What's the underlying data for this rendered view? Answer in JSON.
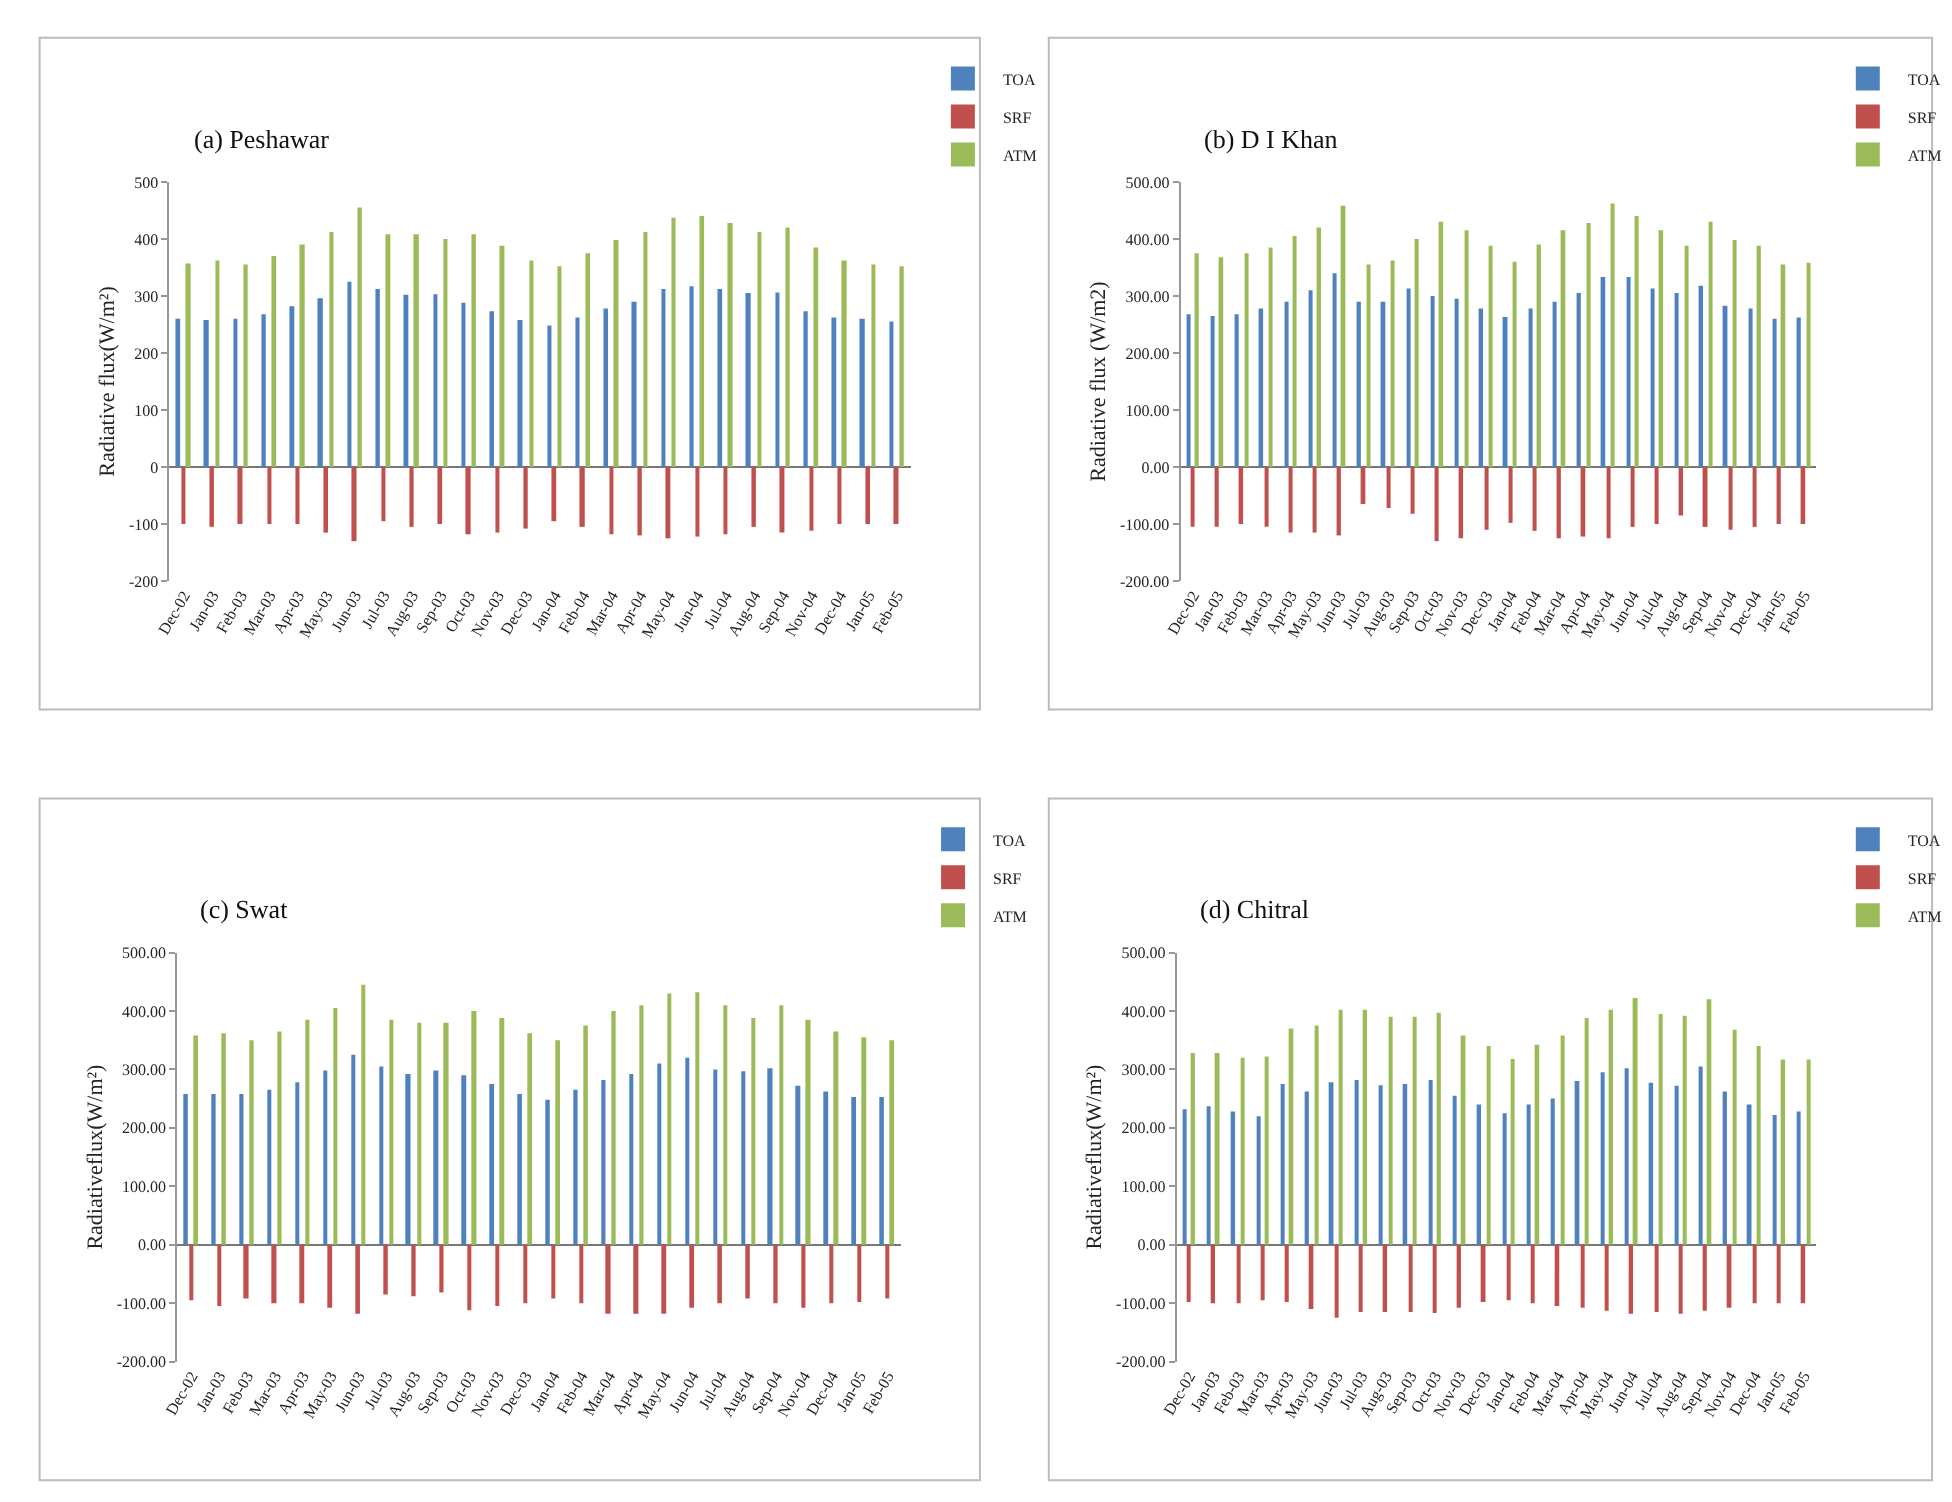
{
  "chart_data": [
    {
      "type": "bar",
      "title": "(a) Peshawar",
      "ylabel": "Radiative flux(W/m²)",
      "legend": "top right",
      "categories": [
        "Dec-02",
        "Jan-03",
        "Feb-03",
        "Mar-03",
        "Apr-03",
        "May-03",
        "Jun-03",
        "Jul-03",
        "Aug-03",
        "Sep-03",
        "Oct-03",
        "Nov-03",
        "Dec-03",
        "Jan-04",
        "Feb-04",
        "Mar-04",
        "Apr-04",
        "May-04",
        "Jun-04",
        "Jul-04",
        "Aug-04",
        "Sep-04",
        "Nov-04",
        "Dec-04",
        "Jan-05",
        "Feb-05"
      ],
      "ylim": [
        -200,
        500
      ],
      "yticks": [
        -200,
        -100,
        0,
        100,
        200,
        300,
        400,
        500
      ],
      "series": [
        {
          "name": "TOA",
          "color": "#4f81bd",
          "values": [
            260,
            258,
            260,
            268,
            282,
            296,
            325,
            312,
            302,
            303,
            288,
            273,
            258,
            248,
            262,
            278,
            290,
            312,
            317,
            312,
            305,
            306,
            273,
            262,
            260,
            255
          ]
        },
        {
          "name": "SRF",
          "color": "#c0504d",
          "values": [
            -100,
            -105,
            -100,
            -100,
            -100,
            -115,
            -130,
            -95,
            -105,
            -100,
            -118,
            -115,
            -108,
            -95,
            -105,
            -118,
            -120,
            -125,
            -122,
            -118,
            -105,
            -115,
            -112,
            -100,
            -100,
            -100
          ]
        },
        {
          "name": "ATM",
          "color": "#9bbb59",
          "values": [
            357,
            362,
            355,
            370,
            390,
            412,
            455,
            408,
            408,
            400,
            408,
            388,
            362,
            352,
            375,
            398,
            412,
            437,
            440,
            428,
            412,
            420,
            385,
            362,
            355,
            352
          ]
        }
      ]
    },
    {
      "type": "bar",
      "title": "(b) D I Khan",
      "ylabel": "Radiative flux (W/m2)",
      "legend": "top right",
      "categories": [
        "Dec-02",
        "Jan-03",
        "Feb-03",
        "Mar-03",
        "Apr-03",
        "May-03",
        "Jun-03",
        "Jul-03",
        "Aug-03",
        "Sep-03",
        "Oct-03",
        "Nov-03",
        "Dec-03",
        "Jan-04",
        "Feb-04",
        "Mar-04",
        "Apr-04",
        "May-04",
        "Jun-04",
        "Jul-04",
        "Aug-04",
        "Sep-04",
        "Nov-04",
        "Dec-04",
        "Jan-05",
        "Feb-05"
      ],
      "ylim": [
        -200,
        500
      ],
      "yticks": [
        {
          "value": -200,
          "label": "-200.00"
        },
        {
          "value": -100,
          "label": "-100.00"
        },
        {
          "value": 0,
          "label": "0.00"
        },
        {
          "value": 100,
          "label": "100.00"
        },
        {
          "value": 200,
          "label": "200.00"
        },
        {
          "value": 300,
          "label": "300.00"
        },
        {
          "value": 400,
          "label": "400.00"
        },
        {
          "value": 500,
          "label": "500.00"
        }
      ],
      "series": [
        {
          "name": "TOA",
          "color": "#4f81bd",
          "values": [
            268,
            265,
            268,
            278,
            290,
            310,
            340,
            290,
            290,
            313,
            300,
            295,
            278,
            263,
            278,
            290,
            305,
            333,
            333,
            313,
            305,
            318,
            283,
            278,
            260,
            262
          ]
        },
        {
          "name": "SRF",
          "color": "#c0504d",
          "values": [
            -105,
            -105,
            -100,
            -105,
            -115,
            -115,
            -120,
            -65,
            -72,
            -82,
            -130,
            -125,
            -110,
            -98,
            -112,
            -125,
            -122,
            -125,
            -105,
            -100,
            -85,
            -105,
            -110,
            -105,
            -100,
            -100
          ]
        },
        {
          "name": "ATM",
          "color": "#9bbb59",
          "values": [
            375,
            368,
            375,
            385,
            405,
            420,
            458,
            355,
            362,
            400,
            430,
            415,
            388,
            360,
            390,
            415,
            428,
            462,
            440,
            415,
            388,
            430,
            398,
            388,
            355,
            358
          ]
        }
      ]
    },
    {
      "type": "bar",
      "title": "(c) Swat",
      "ylabel": "Radiativeflux(W/m²)",
      "legend": "top right",
      "categories": [
        "Dec-02",
        "Jan-03",
        "Feb-03",
        "Mar-03",
        "Apr-03",
        "May-03",
        "Jun-03",
        "Jul-03",
        "Aug-03",
        "Sep-03",
        "Oct-03",
        "Nov-03",
        "Dec-03",
        "Jan-04",
        "Feb-04",
        "Mar-04",
        "Apr-04",
        "May-04",
        "Jun-04",
        "Jul-04",
        "Aug-04",
        "Sep-04",
        "Nov-04",
        "Dec-04",
        "Jan-05",
        "Feb-05"
      ],
      "ylim": [
        -200,
        500
      ],
      "yticks": [
        {
          "value": -200,
          "label": "-200.00"
        },
        {
          "value": -100,
          "label": "-100.00"
        },
        {
          "value": 0,
          "label": "0.00"
        },
        {
          "value": 100,
          "label": "100.00"
        },
        {
          "value": 200,
          "label": "200.00"
        },
        {
          "value": 300,
          "label": "300.00"
        },
        {
          "value": 400,
          "label": "400.00"
        },
        {
          "value": 500,
          "label": "500.00"
        }
      ],
      "series": [
        {
          "name": "TOA",
          "color": "#4f81bd",
          "values": [
            258,
            258,
            258,
            265,
            278,
            298,
            325,
            305,
            292,
            298,
            290,
            275,
            258,
            248,
            265,
            282,
            292,
            310,
            320,
            300,
            297,
            302,
            272,
            262,
            253,
            253
          ]
        },
        {
          "name": "SRF",
          "color": "#c0504d",
          "values": [
            -95,
            -105,
            -92,
            -100,
            -100,
            -108,
            -118,
            -85,
            -88,
            -82,
            -112,
            -105,
            -100,
            -92,
            -100,
            -118,
            -118,
            -118,
            -108,
            -100,
            -92,
            -100,
            -108,
            -100,
            -98,
            -92
          ]
        },
        {
          "name": "ATM",
          "color": "#9bbb59",
          "values": [
            358,
            362,
            350,
            365,
            385,
            405,
            445,
            385,
            380,
            380,
            400,
            388,
            362,
            350,
            375,
            400,
            410,
            430,
            432,
            410,
            388,
            410,
            385,
            365,
            355,
            350
          ]
        }
      ]
    },
    {
      "type": "bar",
      "title": "(d) Chitral",
      "ylabel": "Radiativeflux(W/m²)",
      "legend": "top right",
      "categories": [
        "Dec-02",
        "Jan-03",
        "Feb-03",
        "Mar-03",
        "Apr-03",
        "May-03",
        "Jun-03",
        "Jul-03",
        "Aug-03",
        "Sep-03",
        "Oct-03",
        "Nov-03",
        "Dec-03",
        "Jan-04",
        "Feb-04",
        "Mar-04",
        "Apr-04",
        "May-04",
        "Jun-04",
        "Jul-04",
        "Aug-04",
        "Sep-04",
        "Nov-04",
        "Dec-04",
        "Jan-05",
        "Feb-05"
      ],
      "ylim": [
        -200,
        500
      ],
      "yticks": [
        {
          "value": -200,
          "label": "-200.00"
        },
        {
          "value": -100,
          "label": "-100.00"
        },
        {
          "value": 0,
          "label": "0.00"
        },
        {
          "value": 100,
          "label": "100.00"
        },
        {
          "value": 200,
          "label": "200.00"
        },
        {
          "value": 300,
          "label": "300.00"
        },
        {
          "value": 400,
          "label": "400.00"
        },
        {
          "value": 500,
          "label": "500.00"
        }
      ],
      "series": [
        {
          "name": "TOA",
          "color": "#4f81bd",
          "values": [
            232,
            237,
            228,
            220,
            275,
            262,
            278,
            282,
            273,
            275,
            282,
            255,
            240,
            225,
            240,
            250,
            280,
            295,
            302,
            277,
            272,
            305,
            262,
            240,
            222,
            228
          ]
        },
        {
          "name": "SRF",
          "color": "#c0504d",
          "values": [
            -98,
            -100,
            -100,
            -95,
            -98,
            -110,
            -125,
            -115,
            -115,
            -115,
            -117,
            -108,
            -98,
            -95,
            -100,
            -105,
            -108,
            -113,
            -118,
            -115,
            -118,
            -113,
            -108,
            -100,
            -100,
            -100
          ]
        },
        {
          "name": "ATM",
          "color": "#9bbb59",
          "values": [
            328,
            328,
            320,
            322,
            370,
            375,
            402,
            402,
            390,
            390,
            397,
            358,
            340,
            318,
            342,
            358,
            388,
            402,
            422,
            395,
            392,
            420,
            368,
            340,
            317,
            317
          ]
        }
      ]
    }
  ]
}
